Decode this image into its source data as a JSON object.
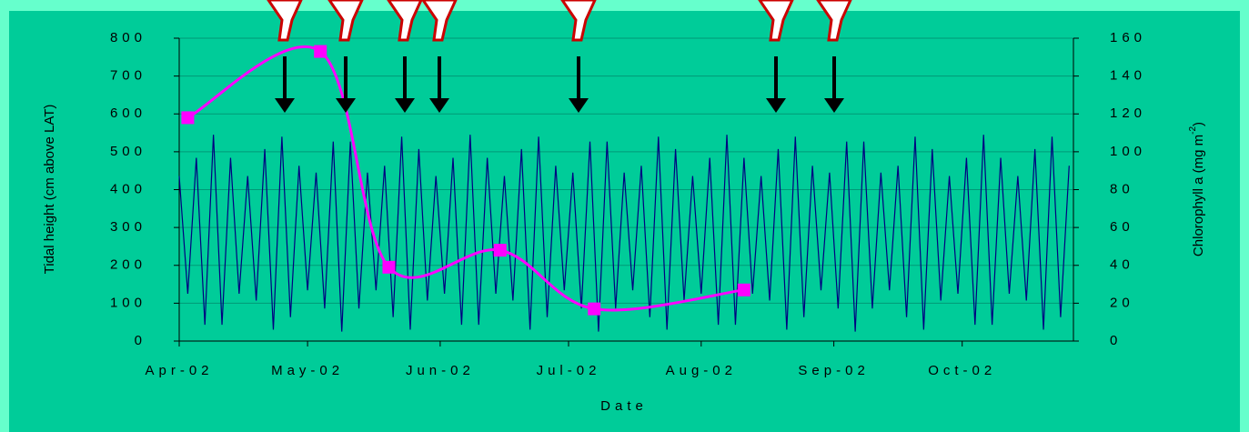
{
  "chart_data": {
    "type": "line",
    "x_label": "Date",
    "y_label": "Tidal height (cm above LAT)",
    "y2_label": {
      "text": "Chlorophyll a (mg m",
      "sup": "-2",
      "end": ")"
    },
    "xlim": [
      0,
      209
    ],
    "xticks": [
      {
        "value": 0,
        "label": "Apr-02"
      },
      {
        "value": 30,
        "label": "May-02"
      },
      {
        "value": 61,
        "label": "Jun-02"
      },
      {
        "value": 91,
        "label": "Jul-02"
      },
      {
        "value": 122,
        "label": "Aug-02"
      },
      {
        "value": 153,
        "label": "Sep-02"
      },
      {
        "value": 183,
        "label": "Oct-02"
      }
    ],
    "ylim": [
      0,
      800
    ],
    "yticks": [
      0,
      100,
      200,
      300,
      400,
      500,
      600,
      700,
      800
    ],
    "y2lim": [
      0,
      160
    ],
    "y2ticks": [
      0,
      20,
      40,
      60,
      80,
      100,
      120,
      140,
      160
    ],
    "grid": true,
    "series": [
      {
        "name": "Tidal height",
        "color": "#000080",
        "axis": "y",
        "x": [
          0,
          2,
          4,
          6,
          8,
          10,
          12,
          14,
          16,
          18,
          20,
          22,
          24,
          26,
          28,
          30,
          32,
          34,
          36,
          38,
          40,
          42,
          44,
          46,
          48,
          50,
          52,
          54,
          56,
          58,
          60,
          62,
          64,
          66,
          68,
          70,
          72,
          74,
          76,
          78,
          80,
          82,
          84,
          86,
          88,
          90,
          92,
          94,
          96,
          98,
          100,
          102,
          104,
          106,
          108,
          110,
          112,
          114,
          116,
          118,
          120,
          122,
          124,
          126,
          128,
          130,
          132,
          134,
          136,
          138,
          140,
          142,
          144,
          146,
          148,
          150,
          152,
          154,
          156,
          158,
          160,
          162,
          164,
          166,
          168,
          170,
          172,
          174,
          176,
          178,
          180,
          182,
          184,
          186,
          188,
          190,
          192,
          194,
          196,
          198,
          200,
          202,
          204,
          206,
          208
        ],
        "values": [
          436,
          125,
          484,
          43,
          545,
          43,
          484,
          125,
          436,
          107,
          507,
          30,
          540,
          63,
          463,
          134,
          445,
          86,
          527,
          25,
          527,
          86,
          445,
          134,
          463,
          63,
          540,
          30,
          507,
          107,
          436,
          125,
          484,
          43,
          545,
          43,
          484,
          125,
          436,
          107,
          507,
          30,
          540,
          63,
          463,
          134,
          445,
          86,
          527,
          25,
          527,
          86,
          445,
          134,
          463,
          63,
          540,
          30,
          507,
          107,
          436,
          125,
          484,
          43,
          545,
          43,
          484,
          125,
          436,
          107,
          507,
          30,
          540,
          63,
          463,
          134,
          445,
          86,
          527,
          25,
          527,
          86,
          445,
          134,
          463,
          63,
          540,
          30,
          507,
          107,
          436,
          125,
          484,
          43,
          545,
          43,
          484,
          125,
          436,
          107,
          507,
          30,
          540,
          63,
          463
        ]
      },
      {
        "name": "Chlorophyll a",
        "color": "#ff00ff",
        "axis": "y2",
        "x": [
          2,
          33,
          49,
          75,
          97,
          132
        ],
        "values": [
          118,
          153,
          39,
          48,
          17,
          27
        ]
      }
    ]
  }
}
